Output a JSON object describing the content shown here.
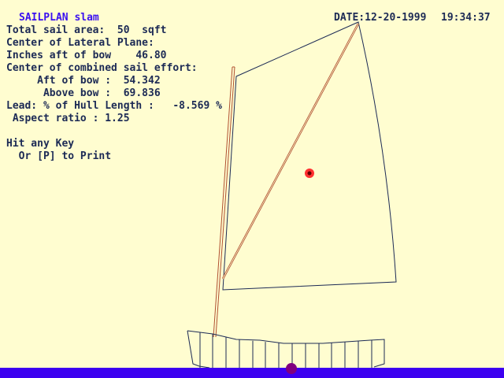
{
  "title": "SAILPLAN slam",
  "date_label": "DATE:12-20-1999",
  "time": "19:34:37",
  "lines": {
    "sail_area": "Total sail area:  50  sqft",
    "clp_header": "Center of Lateral Plane:",
    "clp_inches": "Inches aft of bow    46.80",
    "ce_header": "Center of combined sail effort:",
    "ce_aft": "     Aft of bow :  54.342",
    "ce_above": "      Above bow :  69.836",
    "lead": "Lead: % of Hull Length :   -8.569 %",
    "aspect": " Aspect ratio : 1.25",
    "hit_key": "Hit any Key",
    "print": "  Or [P] to Print"
  },
  "colors": {
    "background": "#fffdd0",
    "text": "#1c2a55",
    "title": "#3a10f0",
    "water": "#3c00f0",
    "mast": "#b05030",
    "ce_marker": "#e00000",
    "clp_marker": "#800080"
  }
}
